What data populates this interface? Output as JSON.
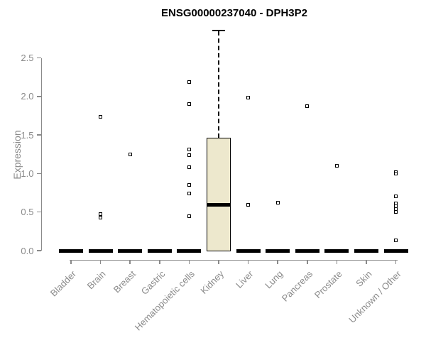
{
  "colors": {
    "background": "#ffffff",
    "axis": "#8a8a8a",
    "tick_label": "#8a8a8a",
    "title_text": "#000000",
    "box_fill": "#ede8cd",
    "box_border": "#000000",
    "flat_bar": "#000000"
  },
  "chart_data": {
    "type": "boxplot",
    "title": "ENSG00000237040 - DPH3P2",
    "xlabel": "",
    "ylabel": "Expression",
    "ylim": [
      0,
      2.9
    ],
    "ytick_labels": [
      "0.0",
      "0.5",
      "1.0",
      "1.5",
      "2.0",
      "2.5"
    ],
    "ytick_values": [
      0.0,
      0.5,
      1.0,
      1.5,
      2.0,
      2.5
    ],
    "grid": false,
    "legend": false,
    "categories": [
      "Bladder",
      "Brain",
      "Breast",
      "Gastric",
      "Hematopoietic cells",
      "Kidney",
      "Liver",
      "Lung",
      "Pancreas",
      "Prostate",
      "Skin",
      "Unknown / Other"
    ],
    "boxes": [
      {
        "category": "Bladder",
        "whisker_low": 0,
        "q1": 0,
        "median": 0,
        "q3": 0,
        "whisker_high": 0,
        "outliers": []
      },
      {
        "category": "Brain",
        "whisker_low": 0,
        "q1": 0,
        "median": 0,
        "q3": 0,
        "whisker_high": 0,
        "outliers": [
          1.74,
          0.47,
          0.43
        ]
      },
      {
        "category": "Breast",
        "whisker_low": 0,
        "q1": 0,
        "median": 0,
        "q3": 0,
        "whisker_high": 0,
        "outliers": [
          1.25
        ]
      },
      {
        "category": "Gastric",
        "whisker_low": 0,
        "q1": 0,
        "median": 0,
        "q3": 0,
        "whisker_high": 0,
        "outliers": []
      },
      {
        "category": "Hematopoietic cells",
        "whisker_low": 0,
        "q1": 0,
        "median": 0,
        "q3": 0,
        "whisker_high": 0,
        "outliers": [
          2.19,
          1.9,
          1.31,
          1.24,
          1.08,
          0.85,
          0.74,
          0.45
        ]
      },
      {
        "category": "Kidney",
        "whisker_low": 0,
        "q1": 0,
        "median": 0.59,
        "q3": 1.46,
        "whisker_high": 2.85,
        "outliers": []
      },
      {
        "category": "Liver",
        "whisker_low": 0,
        "q1": 0,
        "median": 0,
        "q3": 0,
        "whisker_high": 0,
        "outliers": [
          1.98,
          0.59
        ]
      },
      {
        "category": "Lung",
        "whisker_low": 0,
        "q1": 0,
        "median": 0,
        "q3": 0,
        "whisker_high": 0,
        "outliers": [
          0.62
        ]
      },
      {
        "category": "Pancreas",
        "whisker_low": 0,
        "q1": 0,
        "median": 0,
        "q3": 0,
        "whisker_high": 0,
        "outliers": [
          1.87
        ]
      },
      {
        "category": "Prostate",
        "whisker_low": 0,
        "q1": 0,
        "median": 0,
        "q3": 0,
        "whisker_high": 0,
        "outliers": [
          1.1
        ]
      },
      {
        "category": "Skin",
        "whisker_low": 0,
        "q1": 0,
        "median": 0,
        "q3": 0,
        "whisker_high": 0,
        "outliers": []
      },
      {
        "category": "Unknown / Other",
        "whisker_low": 0,
        "q1": 0,
        "median": 0,
        "q3": 0,
        "whisker_high": 0,
        "outliers": [
          1.02,
          1.0,
          0.7,
          0.61,
          0.58,
          0.54,
          0.5,
          0.13
        ]
      }
    ]
  }
}
